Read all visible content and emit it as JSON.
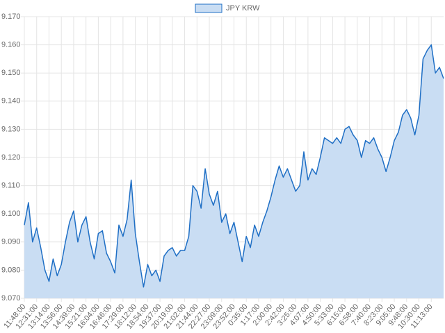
{
  "chart_data": {
    "type": "area",
    "categories": [
      "11:48:00",
      null,
      null,
      "12:31:00",
      null,
      null,
      "13:14:00",
      null,
      null,
      "13:56:00",
      null,
      null,
      "14:39:00",
      null,
      null,
      "15:21:00",
      null,
      null,
      "16:04:00",
      null,
      null,
      "16:46:00",
      null,
      null,
      "17:29:00",
      null,
      null,
      "18:12:00",
      null,
      null,
      "18:54:00",
      null,
      null,
      "19:37:00",
      null,
      null,
      "20:19:00",
      null,
      null,
      "21:02:00",
      null,
      null,
      "21:44:00",
      null,
      null,
      "22:27:00",
      null,
      null,
      "23:09:00",
      null,
      null,
      "23:52:00",
      null,
      null,
      "0:35:00",
      null,
      null,
      "1:17:00",
      null,
      null,
      "2:00:00",
      null,
      null,
      "2:42:00",
      null,
      null,
      "3:25:00",
      null,
      null,
      "4:07:00",
      null,
      null,
      "4:50:00",
      null,
      null,
      "5:33:00",
      null,
      null,
      "6:15:00",
      null,
      null,
      "6:58:00",
      null,
      null,
      "7:40:00",
      null,
      null,
      "8:23:00",
      null,
      null,
      "9:05:00",
      null,
      null,
      "9:48:00",
      null,
      null,
      "10:30:00",
      null,
      null,
      "11:13:00",
      null,
      null,
      null
    ],
    "series": [
      {
        "name": "JPY KRW",
        "color": "#1f6fc5",
        "fill": "#c9ddf3",
        "values": [
          9.096,
          9.104,
          9.09,
          9.095,
          9.088,
          9.08,
          9.076,
          9.084,
          9.078,
          9.082,
          9.09,
          9.097,
          9.101,
          9.09,
          9.096,
          9.099,
          9.09,
          9.084,
          9.093,
          9.094,
          9.086,
          9.083,
          9.079,
          9.096,
          9.092,
          9.098,
          9.112,
          9.093,
          9.083,
          9.074,
          9.082,
          9.078,
          9.08,
          9.076,
          9.085,
          9.087,
          9.088,
          9.085,
          9.087,
          9.087,
          9.092,
          9.11,
          9.108,
          9.102,
          9.116,
          9.107,
          9.103,
          9.108,
          9.097,
          9.1,
          9.093,
          9.097,
          9.09,
          9.083,
          9.092,
          9.088,
          9.096,
          9.092,
          9.097,
          9.101,
          9.106,
          9.112,
          9.117,
          9.113,
          9.116,
          9.112,
          9.108,
          9.11,
          9.122,
          9.112,
          9.116,
          9.114,
          9.12,
          9.127,
          9.126,
          9.125,
          9.127,
          9.125,
          9.13,
          9.131,
          9.128,
          9.126,
          9.12,
          9.126,
          9.125,
          9.127,
          9.123,
          9.12,
          9.115,
          9.12,
          9.126,
          9.129,
          9.135,
          9.137,
          9.134,
          9.128,
          9.135,
          9.155,
          9.158,
          9.16,
          9.15,
          9.152,
          9.148
        ]
      }
    ],
    "ylim": [
      9.07,
      9.17
    ],
    "yticks": [
      {
        "value": 9.07,
        "label": "9.070"
      },
      {
        "value": 9.08,
        "label": "9.080"
      },
      {
        "value": 9.09,
        "label": "9.090"
      },
      {
        "value": 9.1,
        "label": "9.100"
      },
      {
        "value": 9.11,
        "label": "9.110"
      },
      {
        "value": 9.12,
        "label": "9.120"
      },
      {
        "value": 9.13,
        "label": "9.130"
      },
      {
        "value": 9.14,
        "label": "9.140"
      },
      {
        "value": 9.15,
        "label": "9.150"
      },
      {
        "value": 9.16,
        "label": "9.160"
      },
      {
        "value": 9.17,
        "label": "9.170"
      }
    ],
    "grid": true,
    "legend": "top"
  }
}
